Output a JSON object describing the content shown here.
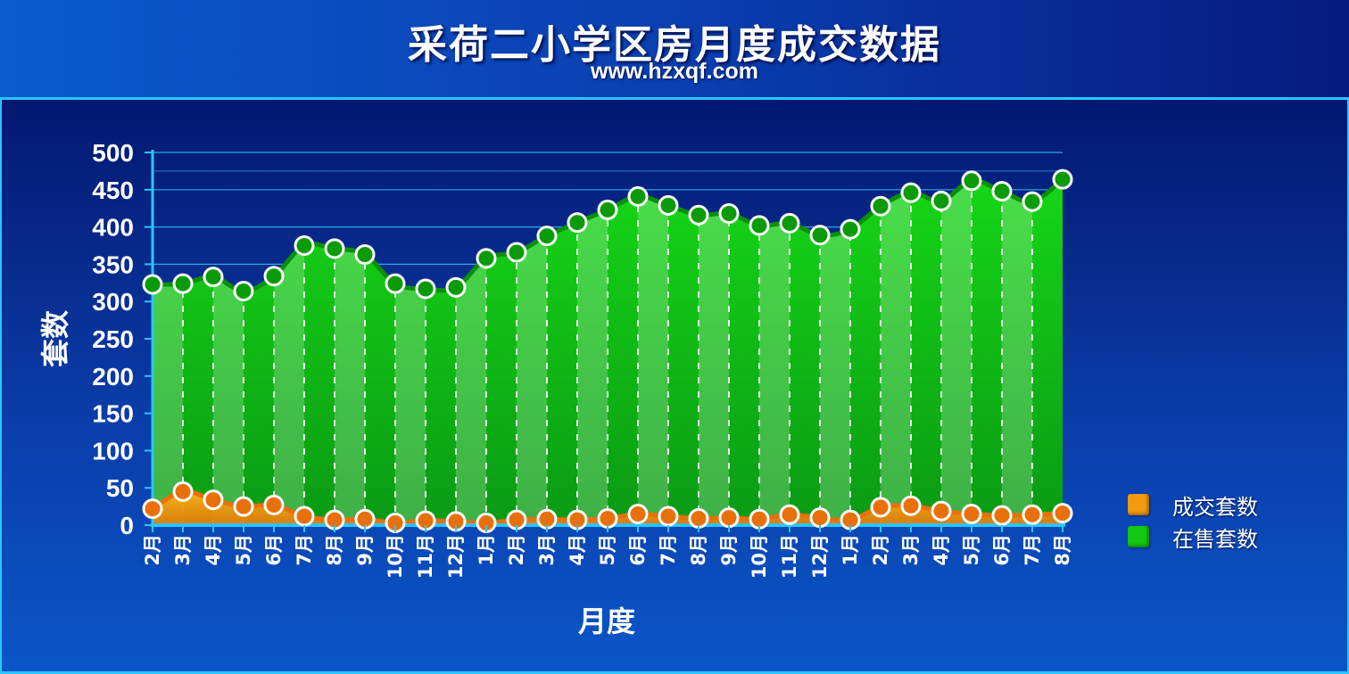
{
  "header": {
    "title": "采荷二小学区房月度成交数据",
    "subtitle": "www.hzxqf.com"
  },
  "colors": {
    "title_bar": "#0a4fc4",
    "plot_background": "#052a96",
    "gridline": "#2fb8f0",
    "axis": "#29c6ff",
    "sold_series": "#f39a10",
    "listed_series": "#14c814"
  },
  "legend": [
    {
      "name": "成交套数",
      "color": "#f39a10"
    },
    {
      "name": "在售套数",
      "color": "#14c814"
    }
  ],
  "chart_data": {
    "type": "area",
    "title": "采荷二小学区房月度成交数据",
    "subtitle": "www.hzxqf.com",
    "xlabel": "月度",
    "ylabel": "套数",
    "ylim": [
      0,
      500
    ],
    "yticks": [
      0,
      50,
      100,
      150,
      200,
      250,
      300,
      350,
      400,
      450,
      500
    ],
    "grid": true,
    "legend_position": "right",
    "categories": [
      "2月",
      "3月",
      "4月",
      "5月",
      "6月",
      "7月",
      "8月",
      "9月",
      "10月",
      "11月",
      "12月",
      "1月",
      "2月",
      "3月",
      "4月",
      "5月",
      "6月",
      "7月",
      "8月",
      "9月",
      "10月",
      "11月",
      "12月",
      "1月",
      "2月",
      "3月",
      "4月",
      "5月",
      "6月",
      "7月",
      "8月"
    ],
    "series": [
      {
        "name": "在售套数",
        "color": "#14c814",
        "values": [
          323,
          324,
          333,
          314,
          334,
          375,
          371,
          363,
          324,
          317,
          319,
          358,
          366,
          388,
          406,
          423,
          441,
          429,
          416,
          418,
          402,
          405,
          389,
          397,
          428,
          446,
          435,
          462,
          448,
          434,
          464
        ]
      },
      {
        "name": "成交套数",
        "color": "#f39a10",
        "values": [
          22,
          45,
          34,
          25,
          27,
          12,
          7,
          8,
          3,
          6,
          5,
          3,
          7,
          8,
          7,
          9,
          15,
          12,
          9,
          10,
          8,
          14,
          10,
          7,
          24,
          26,
          19,
          15,
          13,
          14,
          16
        ]
      }
    ]
  }
}
